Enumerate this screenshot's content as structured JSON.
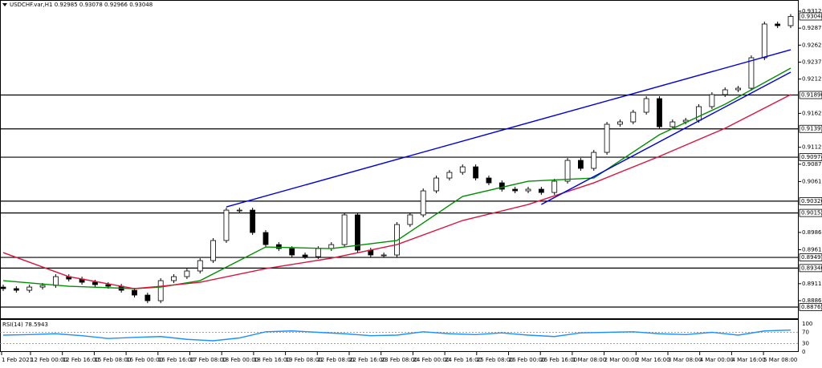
{
  "chart_data": {
    "type": "candlestick",
    "title": "USDCHF.var,H1 0.92985 0.93078 0.92966 0.93048",
    "open": [
      0.8906,
      0.89037,
      0.89013,
      0.8906,
      0.89084,
      0.89214,
      0.89178,
      0.89131,
      0.89096,
      0.89072,
      0.89013,
      0.88942,
      0.88859,
      0.89155,
      0.89214,
      0.89297,
      0.8945,
      0.89746,
      0.90194,
      0.90194,
      0.89864,
      0.89686,
      0.89627,
      0.89533,
      0.89509,
      0.89627,
      0.89686,
      0.90124,
      0.89604,
      0.89533,
      0.89533,
      0.89982,
      0.90124,
      0.90478,
      0.90667,
      0.9075,
      0.90832,
      0.90667,
      0.90596,
      0.90502,
      0.90478,
      0.90502,
      0.90454,
      0.9062,
      0.90927,
      0.90809,
      0.91045,
      0.91459,
      0.91494,
      0.91636,
      0.91837,
      0.91423,
      0.91494,
      0.91518,
      0.91719,
      0.91896,
      0.91967,
      0.9199,
      0.92439,
      0.92936,
      0.92912
    ],
    "close": [
      0.89037,
      0.89013,
      0.8906,
      0.89084,
      0.89214,
      0.89178,
      0.89131,
      0.89096,
      0.89072,
      0.89013,
      0.88942,
      0.88859,
      0.89155,
      0.89214,
      0.89297,
      0.8945,
      0.89746,
      0.90194,
      0.90194,
      0.89864,
      0.89686,
      0.89627,
      0.89533,
      0.89509,
      0.89627,
      0.89686,
      0.90124,
      0.89604,
      0.89533,
      0.89533,
      0.89982,
      0.90124,
      0.90478,
      0.90667,
      0.9075,
      0.90832,
      0.90667,
      0.90596,
      0.90502,
      0.90478,
      0.90502,
      0.90454,
      0.9062,
      0.90927,
      0.90809,
      0.91045,
      0.91459,
      0.91494,
      0.91636,
      0.91837,
      0.91423,
      0.91494,
      0.91518,
      0.91719,
      0.91896,
      0.91967,
      0.9199,
      0.92439,
      0.92936,
      0.92912,
      0.93048
    ],
    "ylim": [
      0.886,
      0.9329
    ],
    "yticks": [
      0.93125,
      0.92875,
      0.92625,
      0.92375,
      0.92125,
      {
        "value": 0.9162,
        "label": "0.91620"
      },
      {
        "value": 0.9112,
        "label": "0.91120"
      },
      {
        "value": 0.9087,
        "label": "0.90870"
      },
      0.90615,
      0.89865,
      {
        "value": 0.8961,
        "label": "0.89610"
      },
      {
        "value": 0.8911,
        "label": "0.89110"
      },
      {
        "value": 0.8886,
        "label": "0.88860"
      }
    ],
    "current_price": 0.93048,
    "levels": [
      {
        "value": 0.9189,
        "label": "0.91890"
      },
      0.91391,
      0.90974,
      0.90326,
      0.90152,
      0.89497,
      {
        "value": 0.8934,
        "label": "0.89340"
      },
      0.88765
    ],
    "moving_averages": [
      {
        "color": "#008f00",
        "x": [
          0,
          5,
          10,
          12,
          15,
          20,
          25,
          30,
          35,
          40,
          45,
          50,
          55,
          60
        ],
        "values": [
          0.89155,
          0.89072,
          0.89037,
          0.8906,
          0.89155,
          0.89651,
          0.89627,
          0.89746,
          0.90395,
          0.9062,
          0.90667,
          0.91305,
          0.91754,
          0.92286
        ]
      },
      {
        "color": "#dc143c",
        "x": [
          0,
          5,
          10,
          12,
          15,
          20,
          25,
          30,
          35,
          40,
          45,
          50,
          55,
          60
        ],
        "values": [
          0.89568,
          0.89214,
          0.89037,
          0.89072,
          0.89131,
          0.89332,
          0.89486,
          0.89686,
          0.90041,
          0.90277,
          0.90596,
          0.90986,
          0.914,
          0.91896
        ]
      }
    ],
    "trendlines": [
      {
        "color": "#0000e0",
        "x": [
          17,
          60
        ],
        "values": [
          0.90241,
          0.92557
        ]
      },
      {
        "color": "#0000e0",
        "x": [
          41,
          60
        ],
        "values": [
          0.90277,
          0.92227
        ]
      }
    ],
    "x_labels": [
      "1 Feb 2021",
      "12 Feb 00:00",
      "12 Feb 16:00",
      "15 Feb 08:00",
      "16 Feb 00:00",
      "16 Feb 16:00",
      "17 Feb 08:00",
      "18 Feb 00:00",
      "18 Feb 16:00",
      "19 Feb 08:00",
      "22 Feb 08:00",
      "22 Feb 16:00",
      "23 Feb 08:00",
      "24 Feb 00:00",
      "24 Feb 16:00",
      "25 Feb 08:00",
      "26 Feb 00:00",
      "26 Feb 16:00",
      "1 Mar 08:00",
      "2 Mar 00:00",
      "2 Mar 16:00",
      "3 Mar 08:00",
      "4 Mar 00:00",
      "4 Mar 16:00",
      "5 Mar 08:00"
    ],
    "rsi": {
      "label": "RSI(14) 78.5943",
      "color": "#1e90ff",
      "ylim": [
        0,
        100
      ],
      "yticks": [
        100,
        70,
        30,
        0
      ],
      "x": [
        0,
        2,
        4,
        6,
        8,
        10,
        12,
        14,
        16,
        18,
        20,
        22,
        24,
        26,
        28,
        30,
        32,
        34,
        36,
        38,
        40,
        42,
        44,
        46,
        48,
        50,
        52,
        54,
        56,
        58,
        60
      ],
      "values": [
        60,
        62,
        65,
        58,
        48,
        52,
        55,
        45,
        40,
        50,
        72,
        75,
        70,
        65,
        58,
        60,
        72,
        65,
        62,
        68,
        60,
        55,
        68,
        70,
        72,
        65,
        62,
        70,
        60,
        75,
        78
      ]
    }
  }
}
